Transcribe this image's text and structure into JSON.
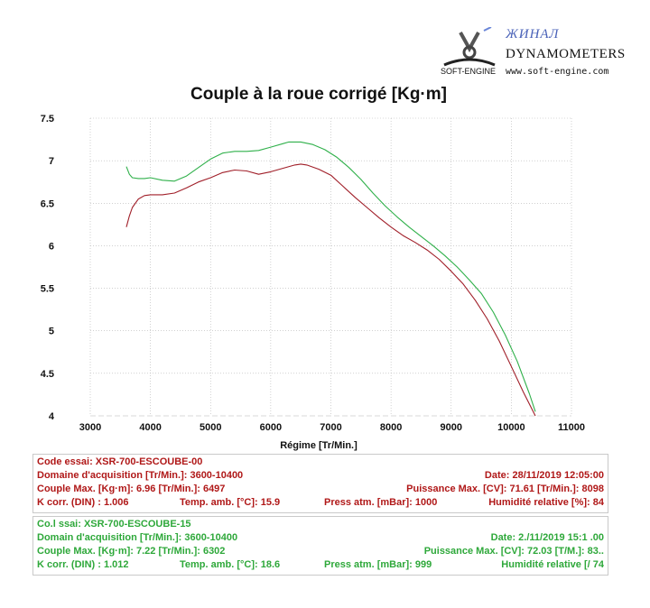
{
  "logo": {
    "brand": "ЖИНАЛ",
    "company": "DYNAMOMETERS",
    "soft_engine": "SOFT-ENGINE",
    "url": "www.soft-engine.com"
  },
  "colors": {
    "run1": "#a01e28",
    "run2": "#2fb04a",
    "grid": "#b5b5b5",
    "panel_border": "#c9c9c9"
  },
  "chart_data": {
    "type": "line",
    "title": "Couple à la roue corrigé [Kg·m]",
    "xlabel": "Régime [Tr/Min.]",
    "ylabel": "",
    "xlim": [
      3000,
      11000
    ],
    "ylim": [
      4,
      7.5
    ],
    "x_ticks": [
      "3000",
      "4000",
      "5000",
      "6000",
      "7000",
      "8000",
      "9000",
      "10000",
      "11000"
    ],
    "y_ticks": [
      "4",
      "4.5",
      "5",
      "5.5",
      "6",
      "6.5",
      "7",
      "7.5"
    ],
    "grid": true,
    "legend": "none",
    "series": [
      {
        "color": "#a01e28",
        "x": [
          3600,
          3650,
          3700,
          3800,
          3900,
          4000,
          4200,
          4400,
          4600,
          4800,
          5000,
          5200,
          5400,
          5600,
          5800,
          6000,
          6200,
          6400,
          6500,
          6600,
          6800,
          7000,
          7200,
          7400,
          7600,
          7800,
          8000,
          8200,
          8400,
          8600,
          8800,
          9000,
          9200,
          9400,
          9600,
          9800,
          10000,
          10200,
          10400
        ],
        "y": [
          6.22,
          6.35,
          6.45,
          6.55,
          6.59,
          6.6,
          6.6,
          6.62,
          6.68,
          6.75,
          6.8,
          6.86,
          6.89,
          6.88,
          6.84,
          6.87,
          6.91,
          6.95,
          6.96,
          6.95,
          6.9,
          6.83,
          6.7,
          6.57,
          6.45,
          6.33,
          6.22,
          6.12,
          6.04,
          5.95,
          5.84,
          5.7,
          5.55,
          5.36,
          5.14,
          4.88,
          4.58,
          4.28,
          4.0
        ]
      },
      {
        "color": "#2fb04a",
        "x": [
          3600,
          3650,
          3700,
          3800,
          3900,
          4000,
          4200,
          4400,
          4600,
          4800,
          5000,
          5200,
          5400,
          5600,
          5800,
          6000,
          6200,
          6300,
          6500,
          6700,
          6900,
          7100,
          7300,
          7500,
          7700,
          7900,
          8100,
          8300,
          8500,
          8700,
          8900,
          9100,
          9300,
          9500,
          9700,
          9900,
          10100,
          10300,
          10400
        ],
        "y": [
          6.93,
          6.84,
          6.8,
          6.79,
          6.79,
          6.8,
          6.77,
          6.76,
          6.82,
          6.92,
          7.02,
          7.09,
          7.11,
          7.11,
          7.12,
          7.16,
          7.2,
          7.22,
          7.22,
          7.19,
          7.13,
          7.04,
          6.92,
          6.78,
          6.62,
          6.47,
          6.34,
          6.22,
          6.11,
          6.0,
          5.88,
          5.75,
          5.6,
          5.44,
          5.22,
          4.95,
          4.64,
          4.26,
          4.05
        ]
      }
    ]
  },
  "run1": {
    "row1": {
      "code": "Code essai: XSR-700-ESCOUBE-00"
    },
    "row2": {
      "domain": "Domaine d'acquisition [Tr/Min.]: 3600-10400",
      "date": "Date: 28/11/2019   12:05:00"
    },
    "row3": {
      "couple": "Couple Max. [Kg·m]: 6.96   [Tr/Min.]: 6497",
      "puissance": "Puissance Max. [CV]: 71.61   [Tr/Min.]: 8098"
    },
    "row4": {
      "k": "K corr. (DIN) : 1.006",
      "temp": "Temp. amb. [°C]: 15.9",
      "press": "Press atm. [mBar]: 1000",
      "hum": "Humidité relative [%]: 84"
    }
  },
  "run2": {
    "row1": {
      "code": "Co.l    ssai: XSR-700-ESCOUBE-15"
    },
    "row2": {
      "domain": "Domain  d'acquisition [Tr/Min.]: 3600-10400",
      "date": "Date: 2./11/2019   15:1 .00"
    },
    "row3": {
      "couple": "Couple Max. [Kg·m]: 7.22   [Tr/Min.]: 6302",
      "puissance": "Puissance Max. [CV]: 72.03   [T/M.]: 83.."
    },
    "row4": {
      "k": "K corr. (DIN) : 1.012",
      "temp": "Temp. amb. [°C]: 18.6",
      "press": "Press atm. [mBar]: 999",
      "hum": "Humidité relative [/    74"
    }
  }
}
